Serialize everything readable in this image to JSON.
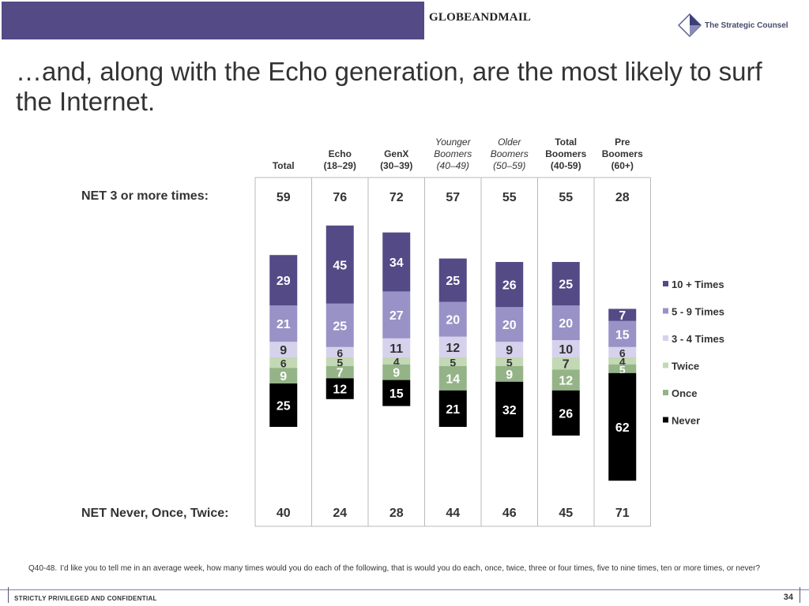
{
  "header": {
    "brand_left": "GLOBEANDMAIL",
    "brand_right": "The Strategic Counsel"
  },
  "title": "…and, along with the Echo generation, are the most likely to surf the Internet.",
  "net_top_label": "NET 3 or more times:",
  "net_bottom_label": "NET Never, Once, Twice:",
  "footnote": {
    "qnum": "Q40-48.",
    "text": "I’d like you to tell me in an average week, how many times would you do each of the following, that is would you do each, once, twice, three or four times, five to nine times, ten or more times, or never?"
  },
  "footer": {
    "confidential": "STRICTLY PRIVILEGED AND CONFIDENTIAL",
    "page": "34"
  },
  "colors": {
    "ten_plus": "#544a86",
    "five_nine": "#9892c6",
    "three_four": "#d6d2ec",
    "twice": "#c3d8b4",
    "once": "#94b487",
    "never": "#000000"
  },
  "chart_data": {
    "type": "bar",
    "stacked": true,
    "diverging": true,
    "categories": [
      {
        "lines": [
          "Total"
        ],
        "italic": false
      },
      {
        "lines": [
          "Echo",
          "(18–29)"
        ],
        "italic": false
      },
      {
        "lines": [
          "GenX",
          "(30–39)"
        ],
        "italic": false
      },
      {
        "lines": [
          "Younger",
          "Boomers",
          "(40–49)"
        ],
        "italic": true
      },
      {
        "lines": [
          "Older",
          "Boomers",
          "(50–59)"
        ],
        "italic": true
      },
      {
        "lines": [
          "Total",
          "Boomers",
          "(40-59)"
        ],
        "italic": false
      },
      {
        "lines": [
          "Pre",
          "Boomers",
          "(60+)"
        ],
        "italic": false
      }
    ],
    "series_up": [
      {
        "name": "3 - 4 Times",
        "color": "#d6d2ec",
        "label_color": "#333333",
        "values": [
          9,
          6,
          11,
          12,
          9,
          10,
          6
        ]
      },
      {
        "name": "5 - 9 Times",
        "color": "#9892c6",
        "label_color": "#ffffff",
        "values": [
          21,
          25,
          27,
          20,
          20,
          20,
          15
        ]
      },
      {
        "name": "10 + Times",
        "color": "#544a86",
        "label_color": "#ffffff",
        "values": [
          29,
          45,
          34,
          25,
          26,
          25,
          7
        ]
      }
    ],
    "series_down": [
      {
        "name": "Twice",
        "color": "#c3d8b4",
        "label_color": "#333333",
        "values": [
          6,
          5,
          4,
          5,
          5,
          7,
          4
        ]
      },
      {
        "name": "Once",
        "color": "#94b487",
        "label_color": "#ffffff",
        "values": [
          9,
          7,
          9,
          14,
          9,
          12,
          5
        ]
      },
      {
        "name": "Never",
        "color": "#000000",
        "label_color": "#ffffff",
        "values": [
          25,
          12,
          15,
          21,
          32,
          26,
          62
        ]
      }
    ],
    "net_top": [
      59,
      76,
      72,
      57,
      55,
      55,
      28
    ],
    "net_bottom": [
      40,
      24,
      28,
      44,
      46,
      45,
      71
    ],
    "legend": [
      {
        "name": "10 + Times",
        "color": "#544a86"
      },
      {
        "name": "5 - 9 Times",
        "color": "#9892c6"
      },
      {
        "name": "3 - 4 Times",
        "color": "#d6d2ec"
      },
      {
        "name": "Twice",
        "color": "#c3d8b4"
      },
      {
        "name": "Once",
        "color": "#94b487"
      },
      {
        "name": "Never",
        "color": "#000000"
      }
    ],
    "legend_position": "right",
    "grid": false
  }
}
